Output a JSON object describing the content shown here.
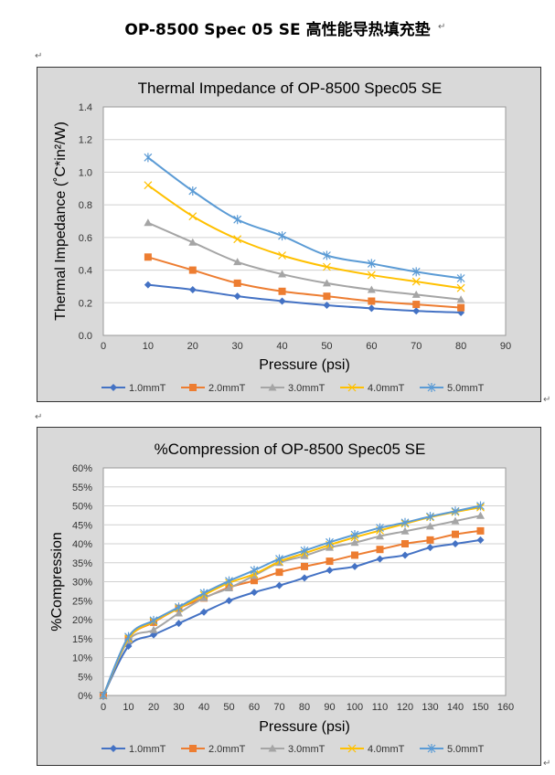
{
  "document": {
    "title": "OP-8500 Spec 05 SE  高性能导热填充垫",
    "paragraph_mark": "↵"
  },
  "series_style": [
    {
      "color": "#4472C4",
      "marker": "diamond"
    },
    {
      "color": "#ED7D31",
      "marker": "square"
    },
    {
      "color": "#A5A5A5",
      "marker": "triangle"
    },
    {
      "color": "#FFC000",
      "marker": "x"
    },
    {
      "color": "#5B9BD5",
      "marker": "asterisk"
    }
  ],
  "chart_data": [
    {
      "type": "line",
      "title": "Thermal Impedance of OP-8500 Spec05 SE",
      "xlabel": "Pressure (psi)",
      "ylabel": "Thermal Impedance (˚C*in²/W)",
      "xlim": [
        0,
        90
      ],
      "xticks": [
        0,
        10,
        20,
        30,
        40,
        50,
        60,
        70,
        80,
        90
      ],
      "xtick_labels": [
        "0",
        "10",
        "20",
        "30",
        "40",
        "50",
        "60",
        "70",
        "80",
        "90"
      ],
      "ylim": [
        0,
        1.4
      ],
      "yticks": [
        0,
        0.2,
        0.4,
        0.6,
        0.8,
        1.0,
        1.2,
        1.4
      ],
      "ytick_labels": [
        "0.0",
        "0.2",
        "0.4",
        "0.6",
        "0.8",
        "1.0",
        "1.2",
        "1.4"
      ],
      "grid": "horizontal",
      "legend": "bottom",
      "smooth": true,
      "x": [
        10,
        20,
        30,
        40,
        50,
        60,
        70,
        80
      ],
      "series": [
        {
          "name": "1.0mmT",
          "values": [
            0.31,
            0.28,
            0.24,
            0.21,
            0.185,
            0.166,
            0.15,
            0.14
          ]
        },
        {
          "name": "2.0mmT",
          "values": [
            0.48,
            0.4,
            0.32,
            0.27,
            0.24,
            0.21,
            0.19,
            0.17
          ]
        },
        {
          "name": "3.0mmT",
          "values": [
            0.69,
            0.57,
            0.45,
            0.375,
            0.32,
            0.28,
            0.25,
            0.22
          ]
        },
        {
          "name": "4.0mmT",
          "values": [
            0.92,
            0.73,
            0.59,
            0.49,
            0.42,
            0.37,
            0.33,
            0.29
          ]
        },
        {
          "name": "5.0mmT",
          "values": [
            1.09,
            0.885,
            0.71,
            0.61,
            0.49,
            0.44,
            0.39,
            0.35
          ]
        }
      ]
    },
    {
      "type": "line",
      "title": "%Compression of OP-8500 Spec05 SE",
      "xlabel": "Pressure (psi)",
      "ylabel": "%Compression",
      "xlim": [
        0,
        160
      ],
      "xticks": [
        0,
        10,
        20,
        30,
        40,
        50,
        60,
        70,
        80,
        90,
        100,
        110,
        120,
        130,
        140,
        150,
        160
      ],
      "xtick_labels": [
        "0",
        "10",
        "20",
        "30",
        "40",
        "50",
        "60",
        "70",
        "80",
        "90",
        "100",
        "110",
        "120",
        "130",
        "140",
        "150",
        "160"
      ],
      "ylim": [
        0,
        60
      ],
      "yticks": [
        0,
        5,
        10,
        15,
        20,
        25,
        30,
        35,
        40,
        45,
        50,
        55,
        60
      ],
      "ytick_labels": [
        "0%",
        "5%",
        "10%",
        "15%",
        "20%",
        "25%",
        "30%",
        "35%",
        "40%",
        "45%",
        "50%",
        "55%",
        "60%"
      ],
      "grid": "horizontal",
      "legend": "bottom",
      "smooth": true,
      "x": [
        0,
        10,
        20,
        30,
        40,
        50,
        60,
        70,
        80,
        90,
        100,
        110,
        120,
        130,
        140,
        150
      ],
      "series": [
        {
          "name": "1.0mmT",
          "values": [
            0,
            13,
            16,
            19,
            22,
            25,
            27.2,
            29,
            31,
            33,
            34,
            36,
            37,
            39,
            40,
            41
          ]
        },
        {
          "name": "2.0mmT",
          "values": [
            0,
            15,
            19.3,
            23,
            25.7,
            28.5,
            30.3,
            32.5,
            34,
            35.4,
            37,
            38.5,
            40,
            41,
            42.5,
            43.4
          ]
        },
        {
          "name": "3.0mmT",
          "values": [
            0,
            14.5,
            17.3,
            21.7,
            25.7,
            28.3,
            31.6,
            35,
            36.8,
            39,
            40.3,
            42,
            43.3,
            44.6,
            46,
            47.4
          ]
        },
        {
          "name": "4.0mmT",
          "values": [
            0,
            15,
            19.5,
            23,
            26.5,
            29.7,
            32,
            35.3,
            37.5,
            39.7,
            41.7,
            43.5,
            45.3,
            47,
            48.4,
            49.6
          ]
        },
        {
          "name": "5.0mmT",
          "values": [
            0,
            15.5,
            19.8,
            23.3,
            27,
            30.2,
            33,
            36,
            38.2,
            40.4,
            42.4,
            44.2,
            45.6,
            47.2,
            48.6,
            50
          ]
        }
      ]
    }
  ]
}
